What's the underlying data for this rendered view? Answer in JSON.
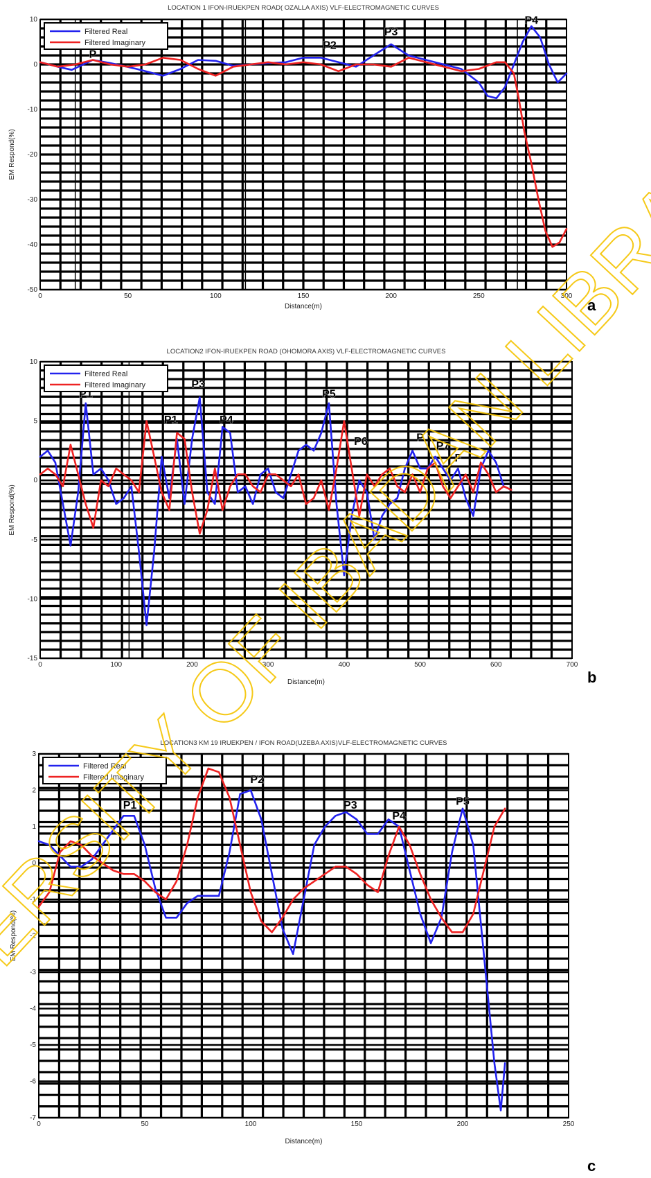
{
  "watermark": {
    "text": "UNIVERSITY OF IBADAN LIBRARY",
    "color": "#f5c400"
  },
  "colors": {
    "real": "#2222ee",
    "imaginary": "#ee2222",
    "grid": "#000000"
  },
  "chart_data": [
    {
      "id": "a",
      "type": "line",
      "panel_letter": "a",
      "title": "LOCATION 1 IFON-IRUEKPEN ROAD( OZALLA AXIS) VLF-ELECTROMAGNETIC CURVES",
      "xlabel": "Distance(m)",
      "ylabel": "EM Respond(%)",
      "xlim": [
        0,
        300
      ],
      "ylim": [
        -50,
        10
      ],
      "xticks": [
        0,
        50,
        100,
        150,
        200,
        250,
        300
      ],
      "yticks": [
        -50,
        -40,
        -30,
        -20,
        -10,
        0,
        10
      ],
      "legend": "top-left",
      "vlines": [
        20,
        117,
        272
      ],
      "series": [
        {
          "name": "Filtered Real",
          "color": "#2222ee",
          "x": [
            0,
            10,
            18,
            30,
            40,
            55,
            70,
            80,
            90,
            100,
            110,
            120,
            130,
            140,
            150,
            160,
            170,
            180,
            190,
            200,
            210,
            220,
            230,
            240,
            250,
            255,
            260,
            265,
            270,
            275,
            280,
            285,
            290,
            295,
            300
          ],
          "y": [
            0.5,
            -0.5,
            -1.2,
            1.0,
            0.3,
            -1.0,
            -2.5,
            -1.0,
            1.0,
            0.8,
            -0.3,
            0.0,
            0.3,
            0.5,
            1.5,
            1.5,
            0.5,
            -0.5,
            2.0,
            4.5,
            2.0,
            1.0,
            0.0,
            -1.0,
            -4.0,
            -7.0,
            -7.5,
            -5.0,
            0.0,
            5.0,
            8.5,
            6.0,
            0.0,
            -4.0,
            -2.0
          ]
        },
        {
          "name": "Filtered Imaginary",
          "color": "#ee2222",
          "x": [
            0,
            10,
            20,
            30,
            40,
            50,
            60,
            70,
            80,
            90,
            100,
            110,
            120,
            130,
            140,
            150,
            160,
            170,
            180,
            190,
            200,
            210,
            220,
            230,
            240,
            250,
            260,
            265,
            270,
            273,
            276,
            280,
            284,
            288,
            292,
            296,
            300
          ],
          "y": [
            0.5,
            -0.5,
            0.0,
            1.0,
            0.0,
            -0.5,
            0.0,
            1.5,
            1.0,
            -1.0,
            -2.5,
            -0.5,
            0.0,
            0.5,
            0.0,
            0.5,
            0.0,
            -1.5,
            0.0,
            0.0,
            -0.5,
            1.5,
            0.5,
            -0.5,
            -1.5,
            -1.0,
            0.5,
            0.5,
            -2.0,
            -8.0,
            -15.0,
            -22.0,
            -30.0,
            -37.0,
            -40.5,
            -39.5,
            -36.5
          ]
        }
      ],
      "annotations": [
        {
          "text": "P2",
          "x": 165,
          "y": 3.5
        },
        {
          "text": "P3",
          "x": 200,
          "y": 6.5
        },
        {
          "text": "P4",
          "x": 280,
          "y": 9
        },
        {
          "text": "P",
          "x": 30,
          "y": 1.5
        }
      ]
    },
    {
      "id": "b",
      "type": "line",
      "panel_letter": "b",
      "title": "LOCATION2 IFON-IRUEKPEN ROAD (OHOMORA AXIS) VLF-ELECTROMAGNETIC CURVES",
      "xlabel": "Distance(m)",
      "ylabel": "EM Respond(%)",
      "xlim": [
        0,
        700
      ],
      "ylim": [
        -15,
        10
      ],
      "xticks": [
        0,
        100,
        200,
        300,
        400,
        500,
        600,
        700
      ],
      "yticks": [
        -15,
        -10,
        -5,
        0,
        5,
        10
      ],
      "legend": "top-left",
      "vlines": [
        117
      ],
      "series": [
        {
          "name": "Filtered Real",
          "color": "#2222ee",
          "x": [
            0,
            10,
            20,
            30,
            40,
            50,
            60,
            70,
            80,
            90,
            100,
            110,
            120,
            130,
            140,
            150,
            160,
            170,
            180,
            190,
            200,
            210,
            220,
            230,
            240,
            250,
            260,
            270,
            280,
            290,
            300,
            310,
            320,
            330,
            340,
            350,
            360,
            370,
            380,
            390,
            400,
            410,
            420,
            430,
            440,
            450,
            460,
            470,
            480,
            490,
            500,
            510,
            520,
            530,
            540,
            550,
            560,
            570,
            580,
            590,
            600,
            610,
            620
          ],
          "y": [
            2.0,
            2.5,
            1.5,
            -2.0,
            -5.5,
            -1.0,
            6.5,
            0.5,
            1.0,
            0.0,
            -2.0,
            -1.5,
            -0.5,
            -6.0,
            -12.2,
            -6.0,
            2.0,
            -1.5,
            3.5,
            -2.0,
            3.5,
            7.0,
            -1.0,
            -2.0,
            4.5,
            4.0,
            -1.0,
            -0.5,
            -2.0,
            0.5,
            1.0,
            -1.0,
            -1.5,
            0.5,
            2.5,
            3.0,
            2.5,
            4.0,
            6.5,
            -2.0,
            -8.0,
            -3.0,
            0.0,
            -1.0,
            -5.0,
            -3.0,
            -2.0,
            -1.5,
            1.0,
            2.5,
            1.0,
            1.0,
            2.0,
            1.0,
            0.0,
            1.0,
            -1.5,
            -3.0,
            1.0,
            2.5,
            1.5,
            -0.5,
            -0.8
          ]
        },
        {
          "name": "Filtered Imaginary",
          "color": "#ee2222",
          "x": [
            0,
            10,
            20,
            30,
            40,
            50,
            60,
            70,
            80,
            90,
            100,
            110,
            120,
            130,
            140,
            150,
            160,
            170,
            180,
            190,
            200,
            210,
            220,
            230,
            240,
            250,
            260,
            270,
            280,
            290,
            300,
            310,
            320,
            330,
            340,
            350,
            360,
            370,
            380,
            390,
            400,
            410,
            420,
            430,
            440,
            450,
            460,
            470,
            480,
            490,
            500,
            510,
            520,
            530,
            540,
            550,
            560,
            570,
            580,
            590,
            600,
            610,
            620
          ],
          "y": [
            0.5,
            1.0,
            0.5,
            -0.5,
            3.0,
            0.5,
            -2.0,
            -4.0,
            0.0,
            -0.5,
            1.0,
            0.5,
            0.0,
            -1.0,
            5.0,
            2.0,
            -1.0,
            -2.5,
            4.0,
            3.5,
            -1.0,
            -4.5,
            -2.5,
            1.0,
            -2.5,
            -0.5,
            0.5,
            0.5,
            -0.5,
            -1.0,
            0.5,
            0.5,
            0.0,
            -0.5,
            0.5,
            -2.0,
            -1.5,
            0.0,
            -2.5,
            1.0,
            5.0,
            1.0,
            -3.0,
            0.5,
            -0.5,
            0.5,
            1.0,
            -0.5,
            -1.0,
            0.5,
            -1.0,
            1.0,
            1.5,
            -0.5,
            -1.5,
            -0.5,
            0.5,
            -1.0,
            1.5,
            0.5,
            -1.0,
            -0.5,
            -0.8
          ]
        }
      ],
      "annotations": [
        {
          "text": "P1",
          "x": 60,
          "y": 7.0
        },
        {
          "text": "P1",
          "x": 172,
          "y": 4.8
        },
        {
          "text": "P3",
          "x": 208,
          "y": 7.8
        },
        {
          "text": "P4",
          "x": 245,
          "y": 4.8
        },
        {
          "text": "P5",
          "x": 380,
          "y": 7.0
        },
        {
          "text": "P6",
          "x": 422,
          "y": 3.0
        },
        {
          "text": "P",
          "x": 500,
          "y": 3.3
        },
        {
          "text": "P7",
          "x": 530,
          "y": 2.6
        },
        {
          "text": "F",
          "x": 550,
          "y": 1.6
        }
      ]
    },
    {
      "id": "c",
      "type": "line",
      "panel_letter": "c",
      "title": "LOCATION3 KM 19 IRUEKPEN / IFON ROAD(UZEBA AXIS)VLF-ELECTROMAGNETIC CURVES",
      "xlabel": "Distance(m)",
      "ylabel": "EM Respond(%)",
      "xlim": [
        0,
        250
      ],
      "ylim": [
        -7,
        3
      ],
      "xticks": [
        0,
        50,
        100,
        150,
        200,
        250
      ],
      "yticks": [
        -7,
        -6,
        -5,
        -4,
        -3,
        -2,
        -1,
        0,
        1,
        2,
        3
      ],
      "legend": "top-left",
      "vlines": [],
      "series": [
        {
          "name": "Filtered Real",
          "color": "#2222ee",
          "x": [
            0,
            5,
            10,
            15,
            20,
            25,
            30,
            35,
            40,
            45,
            50,
            55,
            60,
            65,
            70,
            75,
            80,
            85,
            90,
            95,
            100,
            105,
            110,
            115,
            120,
            125,
            130,
            135,
            140,
            145,
            150,
            155,
            160,
            165,
            170,
            175,
            180,
            185,
            190,
            195,
            200,
            205,
            210,
            215,
            218,
            220
          ],
          "y": [
            0.6,
            0.5,
            0.2,
            -0.1,
            -0.1,
            0.1,
            0.5,
            0.9,
            1.3,
            1.3,
            0.5,
            -0.7,
            -1.5,
            -1.5,
            -1.1,
            -0.9,
            -0.9,
            -0.9,
            0.3,
            1.9,
            2.0,
            1.2,
            -0.3,
            -1.8,
            -2.5,
            -1.0,
            0.5,
            1.0,
            1.3,
            1.4,
            1.2,
            0.8,
            0.8,
            1.2,
            1.0,
            -0.2,
            -1.4,
            -2.2,
            -1.5,
            0.3,
            1.5,
            0.5,
            -2.5,
            -5.5,
            -6.8,
            -5.5
          ]
        },
        {
          "name": "Filtered Imaginary",
          "color": "#ee2222",
          "x": [
            0,
            5,
            10,
            15,
            20,
            25,
            30,
            35,
            40,
            45,
            50,
            55,
            60,
            65,
            70,
            75,
            80,
            85,
            90,
            95,
            100,
            105,
            110,
            115,
            120,
            125,
            130,
            135,
            140,
            145,
            150,
            155,
            160,
            165,
            170,
            175,
            180,
            185,
            190,
            195,
            200,
            205,
            210,
            215,
            220
          ],
          "y": [
            -1.2,
            -0.8,
            0.3,
            0.6,
            0.5,
            0.2,
            0.0,
            -0.2,
            -0.3,
            -0.3,
            -0.5,
            -0.8,
            -1.0,
            -0.5,
            0.5,
            1.8,
            2.6,
            2.5,
            1.8,
            0.5,
            -0.8,
            -1.6,
            -1.9,
            -1.5,
            -1.0,
            -0.7,
            -0.5,
            -0.3,
            -0.1,
            -0.1,
            -0.3,
            -0.6,
            -0.8,
            0.2,
            1.0,
            0.5,
            -0.3,
            -1.0,
            -1.5,
            -1.9,
            -1.9,
            -1.4,
            -0.2,
            1.0,
            1.5
          ]
        }
      ],
      "annotations": [
        {
          "text": "P1",
          "x": 43,
          "y": 1.5
        },
        {
          "text": "P2",
          "x": 103,
          "y": 2.2
        },
        {
          "text": "P3",
          "x": 147,
          "y": 1.5
        },
        {
          "text": "P4",
          "x": 170,
          "y": 1.2
        },
        {
          "text": "P5",
          "x": 200,
          "y": 1.6
        }
      ]
    }
  ]
}
